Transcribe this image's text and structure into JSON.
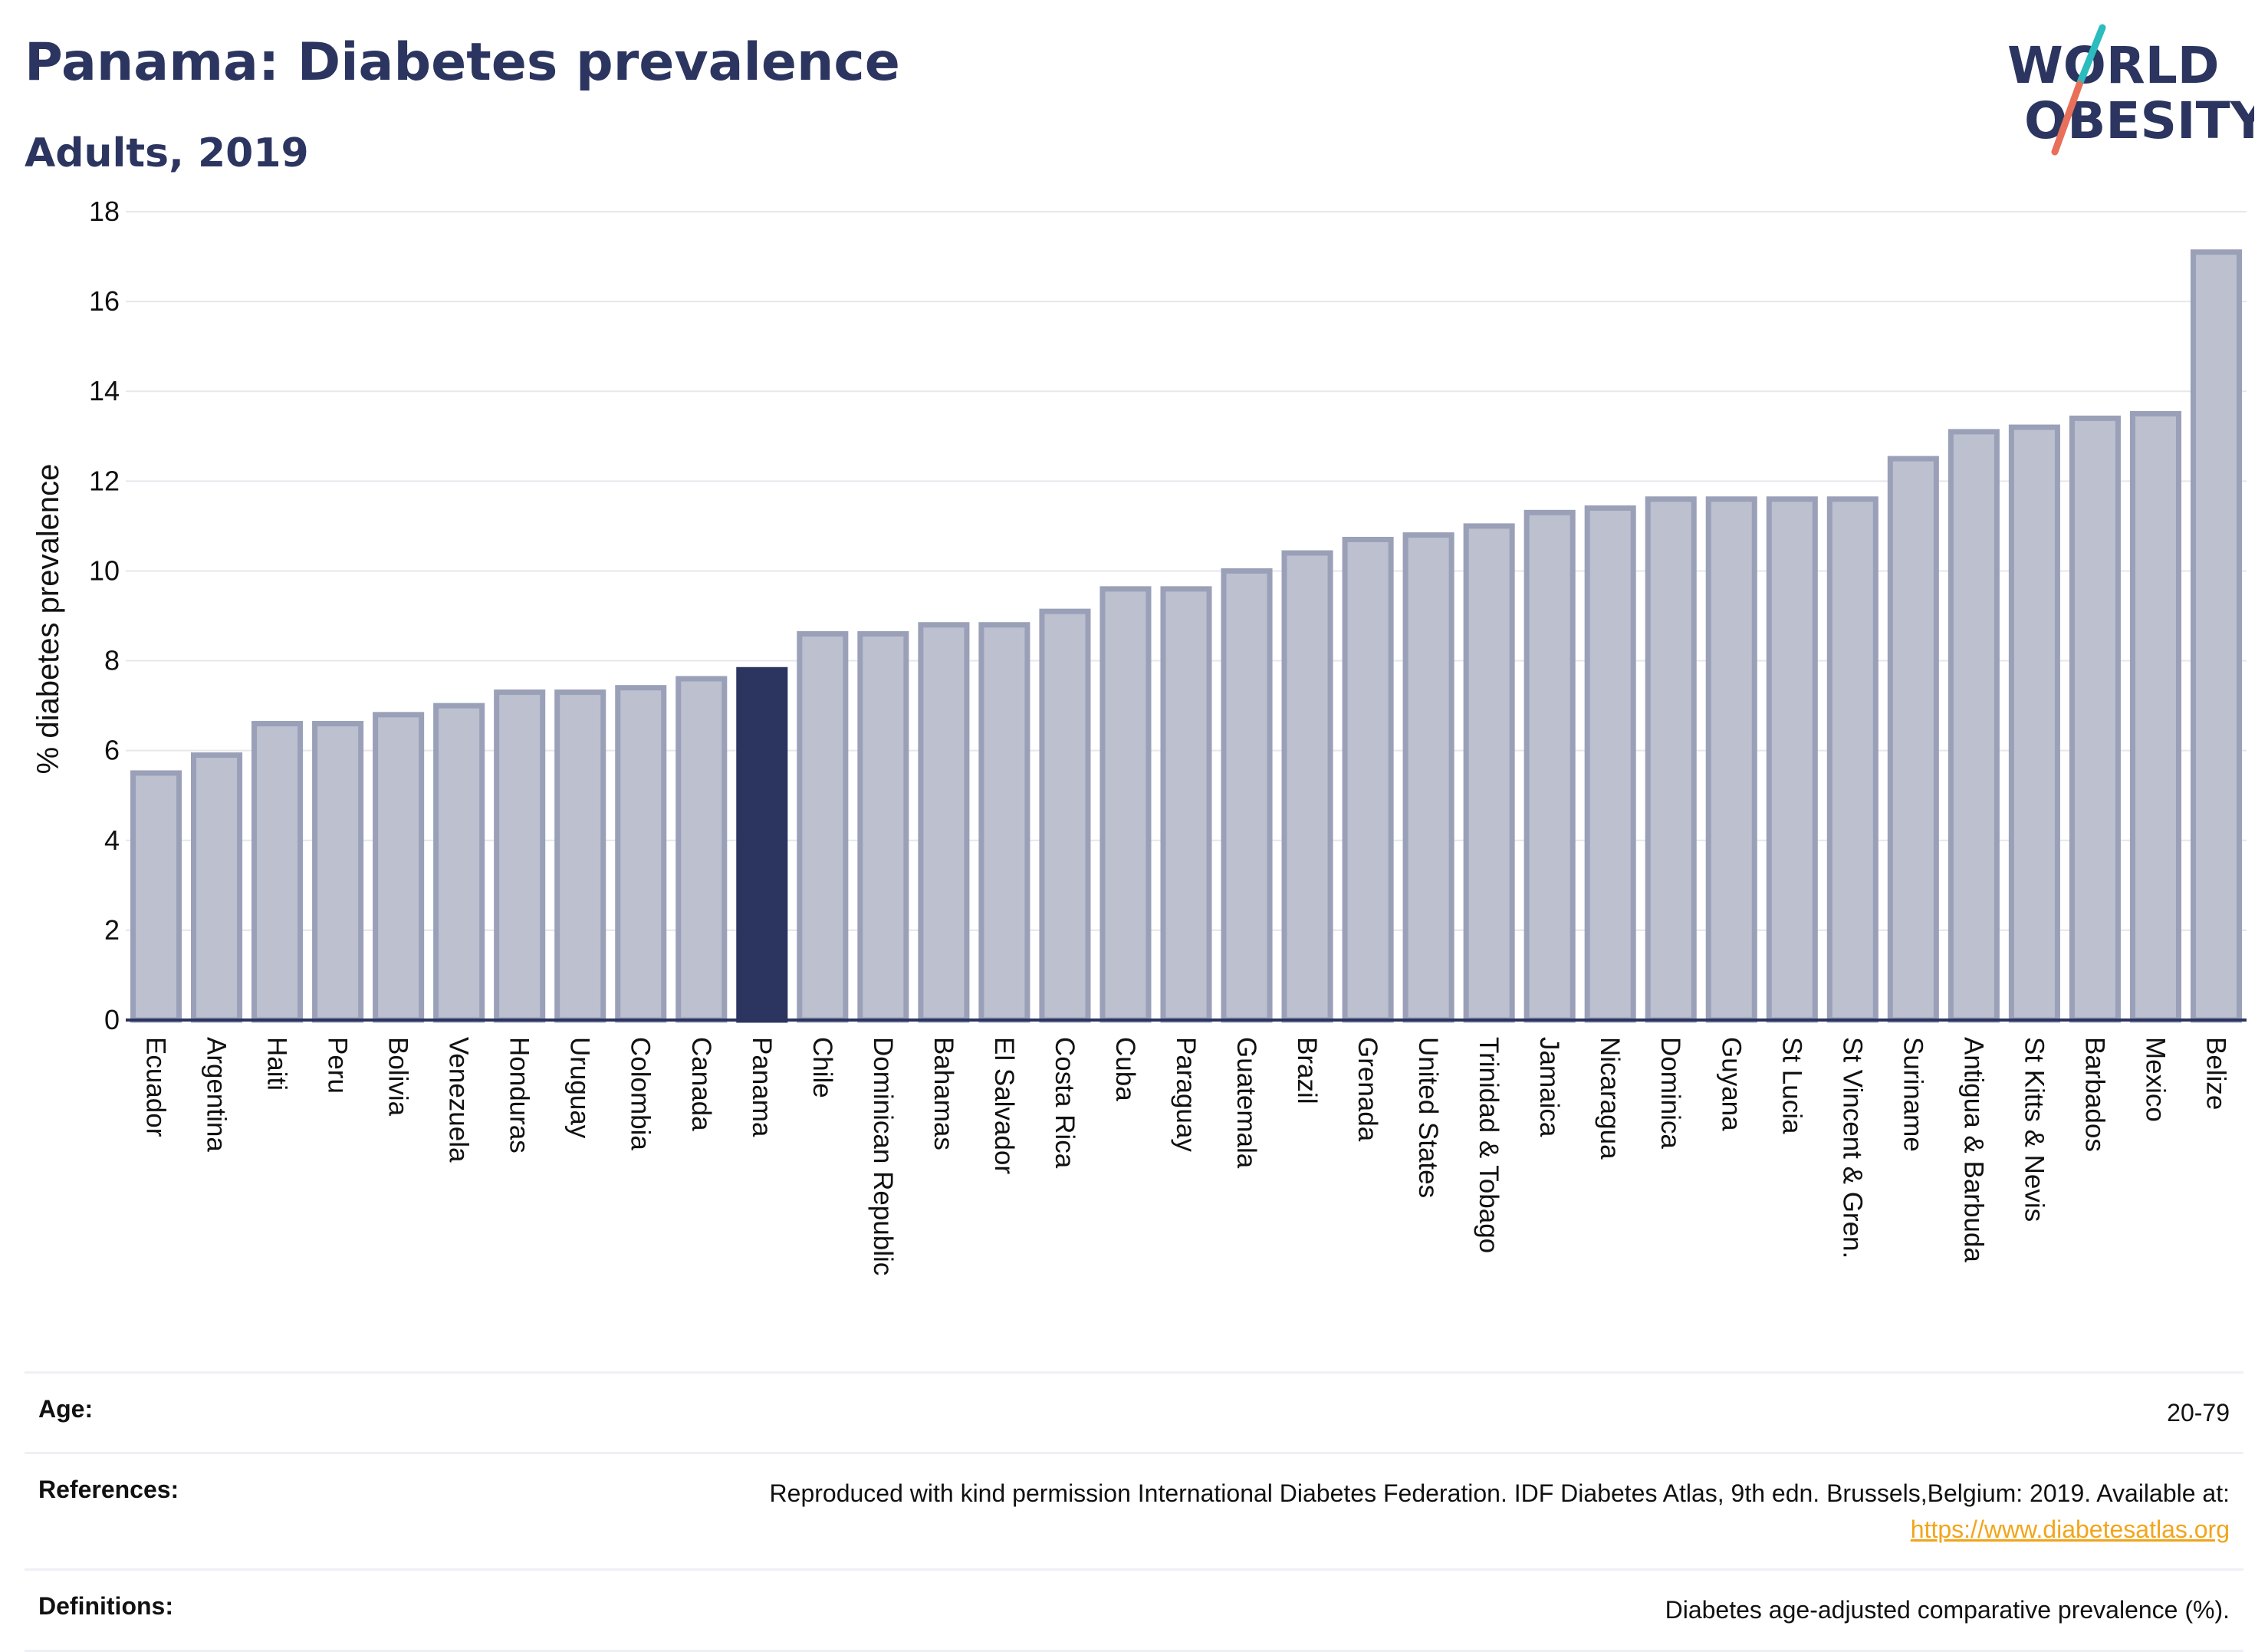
{
  "header": {
    "title": "Panama: Diabetes prevalence",
    "subtitle": "Adults, 2019"
  },
  "logo": {
    "line1": "WORLD",
    "line2": "OBESITY",
    "accent_teal": "#2bbcbf",
    "accent_coral": "#e8705a",
    "text_color": "#2b3560"
  },
  "chart_data": {
    "type": "bar",
    "ylabel": "% diabetes prevalence",
    "xlabel": "",
    "ylim": [
      0,
      18
    ],
    "yticks": [
      0,
      2,
      4,
      6,
      8,
      10,
      12,
      14,
      16,
      18
    ],
    "grid": true,
    "highlight": "Panama",
    "highlight_color": "#2b3560",
    "bar_color": "#bcc0cf",
    "bar_edge_color": "#9aa0b8",
    "categories": [
      "Ecuador",
      "Argentina",
      "Haiti",
      "Peru",
      "Bolivia",
      "Venezuela",
      "Honduras",
      "Uruguay",
      "Colombia",
      "Canada",
      "Panama",
      "Chile",
      "Dominican Republic",
      "Bahamas",
      "El Salvador",
      "Costa Rica",
      "Cuba",
      "Paraguay",
      "Guatemala",
      "Brazil",
      "Grenada",
      "United States",
      "Trinidad & Tobago",
      "Jamaica",
      "Nicaragua",
      "Dominica",
      "Guyana",
      "St Lucia",
      "St Vincent & Gren.",
      "Suriname",
      "Antigua & Barbuda",
      "St Kitts & Nevis",
      "Barbados",
      "Mexico",
      "Belize"
    ],
    "values": [
      5.5,
      5.9,
      6.6,
      6.6,
      6.8,
      7.0,
      7.3,
      7.3,
      7.4,
      7.6,
      7.8,
      8.6,
      8.6,
      8.8,
      8.8,
      9.1,
      9.6,
      9.6,
      10.0,
      10.4,
      10.7,
      10.8,
      11.0,
      11.3,
      11.4,
      11.6,
      11.6,
      11.6,
      11.6,
      12.5,
      13.1,
      13.2,
      13.4,
      13.5,
      17.1
    ]
  },
  "info": {
    "age_label": "Age:",
    "age_value": "20-79",
    "references_label": "References:",
    "references_text": "Reproduced with kind permission International Diabetes Federation. IDF Diabetes Atlas, 9th edn. Brussels,Belgium: 2019. Available at:",
    "references_link": "https://www.diabetesatlas.org",
    "definitions_label": "Definitions:",
    "definitions_value": "Diabetes age-adjusted comparative prevalence (%)."
  }
}
